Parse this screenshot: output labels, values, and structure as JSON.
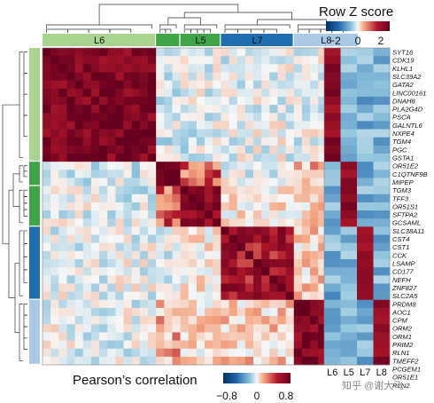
{
  "chart_data": {
    "type": "heatmap",
    "groups": [
      {
        "name": "L6",
        "size": 14,
        "color": "#a9d48f"
      },
      {
        "name": "",
        "size": 3,
        "color": "#3fa548"
      },
      {
        "name": "L5",
        "size": 5,
        "color": "#3fa548"
      },
      {
        "name": "L7",
        "size": 9,
        "color": "#1f6fb0"
      },
      {
        "name": "L8",
        "size": 8,
        "color": "#a9c9e6"
      }
    ],
    "genes": [
      "SYT16",
      "CDK19",
      "KLHL1",
      "SLC39A2",
      "GATA2",
      "LINC00161",
      "DNAH8",
      "PLA2G4D",
      "PSCA",
      "GALNTL6",
      "NXPE4",
      "TGM4",
      "PGC",
      "GSTA1",
      "OR51E2",
      "C1QTNF9B",
      "MIPEP",
      "TGM3",
      "TFF3",
      "OR51S1",
      "SFTPA2",
      "GCSAML",
      "SLC38A11",
      "CST4",
      "CST1",
      "CCK",
      "LSAMP",
      "CD177",
      "NEFH",
      "ZNF827",
      "SLC2A5",
      "PRDM8",
      "AOC1",
      "CPM",
      "ORM2",
      "ORM1",
      "PRIM2",
      "RLN1",
      "TMEFF2",
      "PCGEM1",
      "OR51E1",
      "RLN2"
    ],
    "correlation_legend": {
      "title": "Pearson’s correlation",
      "ticks": [
        "−0.8",
        "0",
        "0.8"
      ],
      "range": [
        -0.8,
        0.8
      ]
    },
    "zscore_legend": {
      "title": "Row Z score",
      "ticks": [
        "−2",
        "0",
        "2"
      ],
      "range": [
        -2,
        2
      ]
    },
    "zscore_columns": [
      "L6",
      "L5",
      "L7",
      "L8"
    ],
    "colors": {
      "neg": "#053061",
      "mid": "#f7f7f7",
      "pos": "#67001f"
    }
  },
  "watermark": "知乎 @谢大飞"
}
